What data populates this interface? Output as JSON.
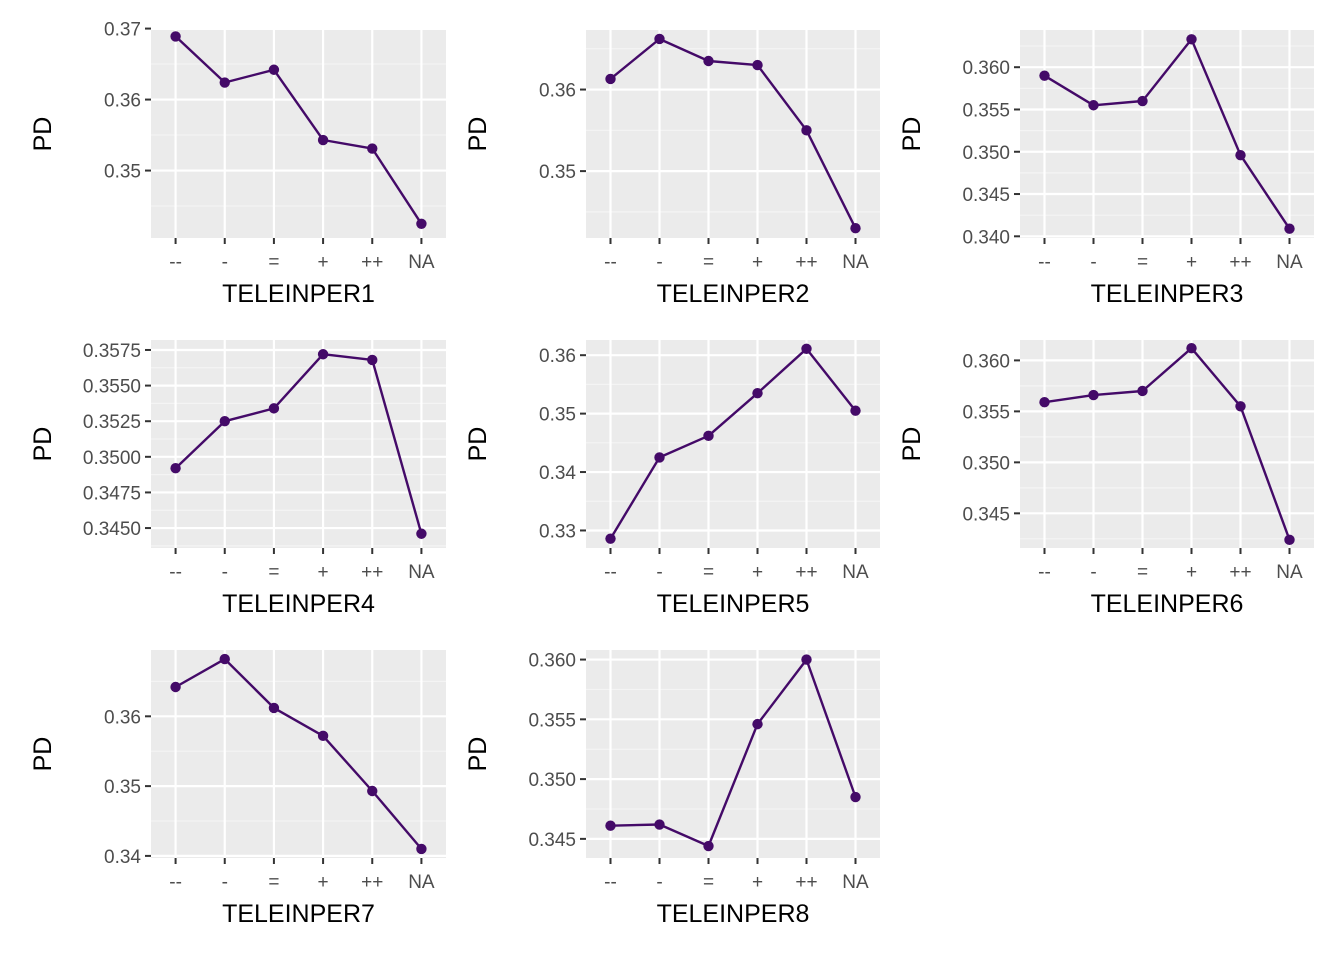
{
  "style": {
    "panel_bg": "#ebebeb",
    "grid_major": "#ffffff",
    "grid_minor": "#f4f4f4",
    "series_color": "#440a68",
    "tick_text": "#4d4d4d",
    "tick_mark": "#333333"
  },
  "chart_data": [
    {
      "type": "line",
      "xlabel": "TELEINPER1",
      "ylabel": "PD",
      "categories": [
        "--",
        "-",
        "=",
        "+",
        "++",
        "NA"
      ],
      "values": [
        0.3689,
        0.3624,
        0.3642,
        0.3543,
        0.3531,
        0.3425
      ],
      "ylim": [
        0.3405,
        0.3698
      ],
      "yticks": [
        0.35,
        0.36,
        0.37
      ],
      "ytick_labels": [
        "0.35",
        "0.36",
        "0.37"
      ]
    },
    {
      "type": "line",
      "xlabel": "TELEINPER2",
      "ylabel": "PD",
      "categories": [
        "--",
        "-",
        "=",
        "+",
        "++",
        "NA"
      ],
      "values": [
        0.3613,
        0.3662,
        0.3635,
        0.363,
        0.355,
        0.343
      ],
      "ylim": [
        0.3418,
        0.3673
      ],
      "yticks": [
        0.35,
        0.36
      ],
      "ytick_labels": [
        "0.35",
        "0.36"
      ]
    },
    {
      "type": "line",
      "xlabel": "TELEINPER3",
      "ylabel": "PD",
      "categories": [
        "--",
        "-",
        "=",
        "+",
        "++",
        "NA"
      ],
      "values": [
        0.359,
        0.3555,
        0.356,
        0.3633,
        0.3496,
        0.3409
      ],
      "ylim": [
        0.3398,
        0.3644
      ],
      "yticks": [
        0.34,
        0.345,
        0.35,
        0.355,
        0.36
      ],
      "ytick_labels": [
        "0.340",
        "0.345",
        "0.350",
        "0.355",
        "0.360"
      ]
    },
    {
      "type": "line",
      "xlabel": "TELEINPER4",
      "ylabel": "PD",
      "categories": [
        "--",
        "-",
        "=",
        "+",
        "++",
        "NA"
      ],
      "values": [
        0.3492,
        0.3525,
        0.3534,
        0.3572,
        0.3568,
        0.3446
      ],
      "ylim": [
        0.3436,
        0.3582
      ],
      "yticks": [
        0.345,
        0.3475,
        0.35,
        0.3525,
        0.355,
        0.3575
      ],
      "ytick_labels": [
        "0.3450",
        "0.3475",
        "0.3500",
        "0.3525",
        "0.3550",
        "0.3575"
      ]
    },
    {
      "type": "line",
      "xlabel": "TELEINPER5",
      "ylabel": "PD",
      "categories": [
        "--",
        "-",
        "=",
        "+",
        "++",
        "NA"
      ],
      "values": [
        0.3286,
        0.3425,
        0.3462,
        0.3535,
        0.3611,
        0.3505
      ],
      "ylim": [
        0.327,
        0.3626
      ],
      "yticks": [
        0.33,
        0.34,
        0.35,
        0.36
      ],
      "ytick_labels": [
        "0.33",
        "0.34",
        "0.35",
        "0.36"
      ]
    },
    {
      "type": "line",
      "xlabel": "TELEINPER6",
      "ylabel": "PD",
      "categories": [
        "--",
        "-",
        "=",
        "+",
        "++",
        "NA"
      ],
      "values": [
        0.3559,
        0.3566,
        0.357,
        0.3612,
        0.3555,
        0.3424
      ],
      "ylim": [
        0.3416,
        0.362
      ],
      "yticks": [
        0.345,
        0.35,
        0.355,
        0.36
      ],
      "ytick_labels": [
        "0.345",
        "0.350",
        "0.355",
        "0.360"
      ]
    },
    {
      "type": "line",
      "xlabel": "TELEINPER7",
      "ylabel": "PD",
      "categories": [
        "--",
        "-",
        "=",
        "+",
        "++",
        "NA"
      ],
      "values": [
        0.3642,
        0.3682,
        0.3612,
        0.3572,
        0.3493,
        0.341
      ],
      "ylim": [
        0.3397,
        0.3695
      ],
      "yticks": [
        0.34,
        0.35,
        0.36
      ],
      "ytick_labels": [
        "0.34",
        "0.35",
        "0.36"
      ]
    },
    {
      "type": "line",
      "xlabel": "TELEINPER8",
      "ylabel": "PD",
      "categories": [
        "--",
        "-",
        "=",
        "+",
        "++",
        "NA"
      ],
      "values": [
        0.3461,
        0.3462,
        0.3444,
        0.3546,
        0.36,
        0.3485
      ],
      "ylim": [
        0.3434,
        0.3608
      ],
      "yticks": [
        0.345,
        0.35,
        0.355,
        0.36
      ],
      "ytick_labels": [
        "0.345",
        "0.350",
        "0.355",
        "0.360"
      ]
    }
  ]
}
